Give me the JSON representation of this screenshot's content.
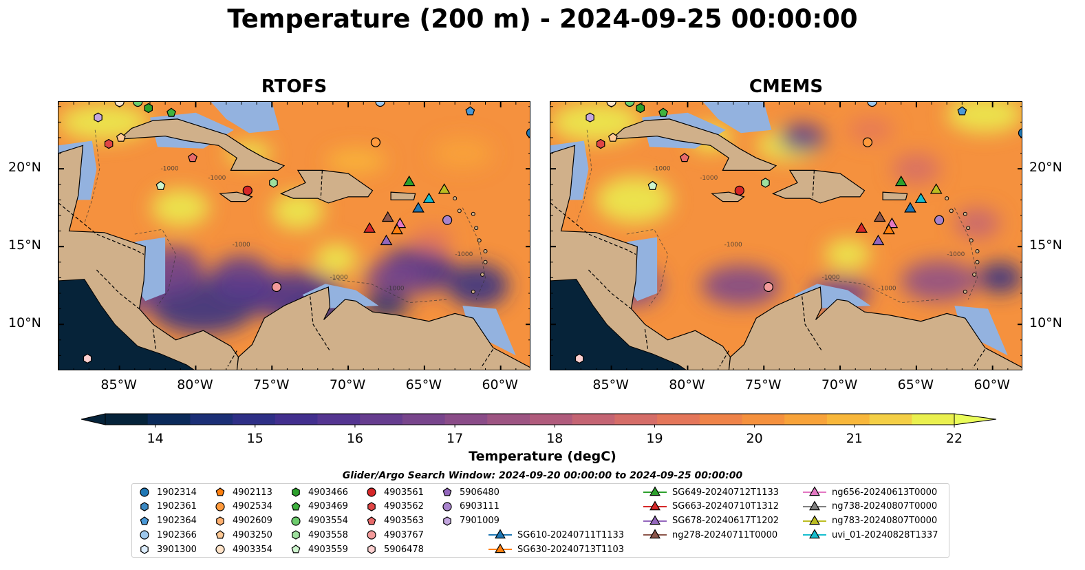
{
  "title": "Temperature (200 m) - 2024-09-25 00:00:00",
  "panels": [
    {
      "title": "RTOFS",
      "key": "rtofs"
    },
    {
      "title": "CMEMS",
      "key": "cmems"
    }
  ],
  "map": {
    "lon_range": [
      -89,
      -58
    ],
    "lat_range": [
      7,
      24.3
    ],
    "xticks": [
      "85°W",
      "80°W",
      "75°W",
      "70°W",
      "65°W",
      "60°W"
    ],
    "xtick_values": [
      -85,
      -80,
      -75,
      -70,
      -65,
      -60
    ],
    "yticks": [
      "20°N",
      "15°N",
      "10°N"
    ],
    "ytick_values": [
      20,
      15,
      10
    ],
    "land_color": "#d0b08a",
    "shelf_color": "#93b2df",
    "contour_label": "-1000"
  },
  "colorbar": {
    "label": "Temperature (degC)",
    "ticks": [
      "14",
      "15",
      "16",
      "17",
      "18",
      "19",
      "20",
      "21",
      "22"
    ],
    "vmin": 13.5,
    "vmax": 22,
    "colors": [
      "#05233a",
      "#0b2a5a",
      "#1b2f76",
      "#2e2f86",
      "#422f8e",
      "#543591",
      "#663d8f",
      "#78458c",
      "#8a4c88",
      "#9d5482",
      "#b05b7c",
      "#c46473",
      "#d56d68",
      "#e4765a",
      "#ef8349",
      "#f5913e",
      "#f8a33a",
      "#f8b73b",
      "#f4cf46",
      "#eaf04f"
    ]
  },
  "search_window": "Glider/Argo Search Window: 2024-09-20 00:00:00 to 2024-09-25 00:00:00",
  "legend": {
    "argo_columns": [
      [
        {
          "label": "1902314",
          "marker": "circle",
          "color": "#1f77b4"
        },
        {
          "label": "1902361",
          "marker": "hexagon",
          "color": "#3a88c2"
        },
        {
          "label": "1902364",
          "marker": "pentagon",
          "color": "#4a98d6"
        },
        {
          "label": "1902366",
          "marker": "circle",
          "color": "#9ec8ec"
        },
        {
          "label": "3901300",
          "marker": "hexagon",
          "color": "#ddeeff"
        }
      ],
      [
        {
          "label": "4902113",
          "marker": "pentagon",
          "color": "#ff7f0e"
        },
        {
          "label": "4902534",
          "marker": "circle",
          "color": "#ff9a3c"
        },
        {
          "label": "4902609",
          "marker": "hexagon",
          "color": "#ffb070"
        },
        {
          "label": "4903250",
          "marker": "pentagon",
          "color": "#ffc995"
        },
        {
          "label": "4903354",
          "marker": "circle",
          "color": "#ffe3c8"
        }
      ],
      [
        {
          "label": "4903466",
          "marker": "hexagon",
          "color": "#2ca02c"
        },
        {
          "label": "4903469",
          "marker": "pentagon",
          "color": "#3fb23f"
        },
        {
          "label": "4903554",
          "marker": "circle",
          "color": "#6dcc6d"
        },
        {
          "label": "4903558",
          "marker": "hexagon",
          "color": "#9ee09e"
        },
        {
          "label": "4903559",
          "marker": "pentagon",
          "color": "#cdf5cd"
        }
      ],
      [
        {
          "label": "4903561",
          "marker": "circle",
          "color": "#d62728"
        },
        {
          "label": "4903562",
          "marker": "hexagon",
          "color": "#e04545"
        },
        {
          "label": "4903563",
          "marker": "pentagon",
          "color": "#e86a6a"
        },
        {
          "label": "4903767",
          "marker": "circle",
          "color": "#f29a9a"
        },
        {
          "label": "5906478",
          "marker": "hexagon",
          "color": "#fcd0d0"
        }
      ],
      [
        {
          "label": "5906480",
          "marker": "pentagon",
          "color": "#9467bd"
        },
        {
          "label": "6903111",
          "marker": "circle",
          "color": "#a883cc"
        },
        {
          "label": "7901009",
          "marker": "hexagon",
          "color": "#c3a6df"
        }
      ]
    ],
    "glider_columns": [
      [
        {
          "label": "SG610-20240711T1133",
          "marker": "triangle",
          "color": "#1f77b4"
        },
        {
          "label": "SG630-20240713T1103",
          "marker": "triangle",
          "color": "#ff7f0e"
        }
      ],
      [
        {
          "label": "SG649-20240712T1133",
          "marker": "triangle",
          "color": "#2ca02c"
        },
        {
          "label": "SG663-20240710T1312",
          "marker": "triangle",
          "color": "#d62728"
        },
        {
          "label": "SG678-20240617T1202",
          "marker": "triangle",
          "color": "#9467bd"
        },
        {
          "label": "ng278-20240711T0000",
          "marker": "triangle",
          "color": "#8c564b"
        }
      ],
      [
        {
          "label": "ng656-20240613T0000",
          "marker": "triangle",
          "color": "#e377c2"
        },
        {
          "label": "ng738-20240807T0000",
          "marker": "triangle",
          "color": "#7f7f7f"
        },
        {
          "label": "ng783-20240807T0000",
          "marker": "triangle",
          "color": "#bcbd22"
        },
        {
          "label": "uvi_01-20240828T1337",
          "marker": "triangle",
          "color": "#17becf"
        }
      ]
    ]
  },
  "markers": [
    {
      "lon": -86.4,
      "lat": 23.3,
      "marker": "hexagon",
      "color": "#c3a6df"
    },
    {
      "lon": -85.0,
      "lat": 24.3,
      "marker": "circle",
      "color": "#ffe3c8"
    },
    {
      "lon": -83.8,
      "lat": 24.3,
      "marker": "circle",
      "color": "#6dcc6d"
    },
    {
      "lon": -83.1,
      "lat": 23.9,
      "marker": "hexagon",
      "color": "#2ca02c"
    },
    {
      "lon": -81.6,
      "lat": 23.6,
      "marker": "pentagon",
      "color": "#3fb23f"
    },
    {
      "lon": -84.9,
      "lat": 22.0,
      "marker": "pentagon",
      "color": "#ffc995"
    },
    {
      "lon": -85.7,
      "lat": 21.6,
      "marker": "hexagon",
      "color": "#e04545"
    },
    {
      "lon": -80.2,
      "lat": 20.7,
      "marker": "pentagon",
      "color": "#e86a6a"
    },
    {
      "lon": -82.3,
      "lat": 18.9,
      "marker": "pentagon",
      "color": "#cdf5cd"
    },
    {
      "lon": -76.6,
      "lat": 18.6,
      "marker": "circle",
      "color": "#d62728"
    },
    {
      "lon": -74.9,
      "lat": 19.1,
      "marker": "hexagon",
      "color": "#9ee09e"
    },
    {
      "lon": -68.2,
      "lat": 21.7,
      "marker": "circle",
      "color": "#ff9a3c"
    },
    {
      "lon": -67.9,
      "lat": 24.3,
      "marker": "circle",
      "color": "#9ec8ec"
    },
    {
      "lon": -62.0,
      "lat": 23.7,
      "marker": "pentagon",
      "color": "#4a98d6"
    },
    {
      "lon": -58.0,
      "lat": 22.3,
      "marker": "circle",
      "color": "#1f77b4"
    },
    {
      "lon": -63.5,
      "lat": 16.7,
      "marker": "circle",
      "color": "#a883cc"
    },
    {
      "lon": -74.7,
      "lat": 12.4,
      "marker": "circle",
      "color": "#f29a9a"
    },
    {
      "lon": -87.1,
      "lat": 7.8,
      "marker": "hexagon",
      "color": "#fcd0d0"
    },
    {
      "lon": -66.0,
      "lat": 19.2,
      "marker": "triangle",
      "color": "#2ca02c"
    },
    {
      "lon": -63.7,
      "lat": 18.7,
      "marker": "triangle",
      "color": "#bcbd22"
    },
    {
      "lon": -64.7,
      "lat": 18.1,
      "marker": "triangle",
      "color": "#17becf"
    },
    {
      "lon": -65.4,
      "lat": 17.5,
      "marker": "triangle",
      "color": "#1f77b4"
    },
    {
      "lon": -68.6,
      "lat": 16.2,
      "marker": "triangle",
      "color": "#d62728"
    },
    {
      "lon": -67.4,
      "lat": 16.9,
      "marker": "triangle",
      "color": "#8c564b"
    },
    {
      "lon": -66.6,
      "lat": 16.5,
      "marker": "triangle",
      "color": "#e377c2"
    },
    {
      "lon": -66.8,
      "lat": 16.1,
      "marker": "triangle",
      "color": "#ff7f0e"
    },
    {
      "lon": -67.5,
      "lat": 15.4,
      "marker": "triangle",
      "color": "#9467bd"
    }
  ]
}
